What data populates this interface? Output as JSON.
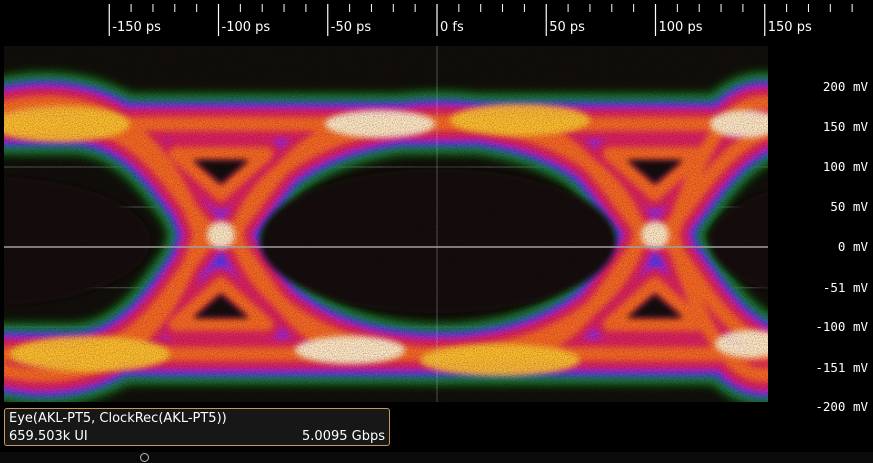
{
  "x_axis": {
    "ticks": [
      {
        "label": "-150 ps",
        "value": -150
      },
      {
        "label": "-100 ps",
        "value": -100
      },
      {
        "label": "-50 ps",
        "value": -50
      },
      {
        "label": "0 fs",
        "value": 0
      },
      {
        "label": "50 ps",
        "value": 50
      },
      {
        "label": "100 ps",
        "value": 100
      },
      {
        "label": "150 ps",
        "value": 150
      }
    ]
  },
  "y_axis": {
    "ticks": [
      {
        "label": "200 mV",
        "value": 200
      },
      {
        "label": "150 mV",
        "value": 150
      },
      {
        "label": "100 mV",
        "value": 100
      },
      {
        "label": "50 mV",
        "value": 50
      },
      {
        "label": "0 mV",
        "value": 0
      },
      {
        "label": "-51 mV",
        "value": -51
      },
      {
        "label": "-100 mV",
        "value": -100
      },
      {
        "label": "-151 mV",
        "value": -151
      },
      {
        "label": "-200 mV",
        "value": -200
      }
    ]
  },
  "info": {
    "title": "Eye(AKL-PT5, ClockRec(AKL-PT5))",
    "ui_count": "659.503k UI",
    "bit_rate": "5.0095 Gbps"
  },
  "colors": {
    "background": "#000000",
    "plot_background": "#120f0b",
    "gridline": "#555555",
    "center_line": "#a0a0a0",
    "heat": [
      "#1fa61f",
      "#3a3cff",
      "#b020d8",
      "#e0205a",
      "#ff7a14",
      "#ffc830",
      "#fff5d6"
    ]
  }
}
